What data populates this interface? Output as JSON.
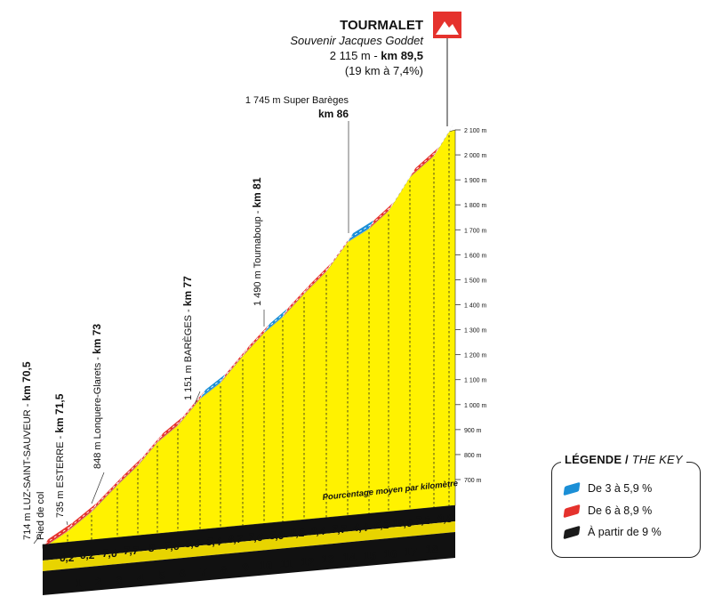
{
  "summit": {
    "name": "TOURMALET",
    "subtitle": "Souvenir Jacques Goddet",
    "altitude": "2 115 m - ",
    "km": "km 89,5",
    "climb": "(19 km à 7,4%)",
    "flag_icon": "mountain-flag-icon",
    "flag_color": "#e5322d"
  },
  "legend": {
    "title": "LÉGENDE /",
    "title_en": "THE KEY",
    "items": [
      {
        "label": "De 3 à 5,9 %",
        "color": "#1b8fd6"
      },
      {
        "label": "De 6 à 8,9 %",
        "color": "#e5322d"
      },
      {
        "label": "À partir de 9 %",
        "color": "#1a1a1a"
      }
    ]
  },
  "chart_data": {
    "type": "area",
    "title": "TOURMALET",
    "xlabel": "",
    "ylabel": "",
    "ylim": [
      700,
      2100
    ],
    "ytick_values": [
      700,
      800,
      900,
      1000,
      1100,
      1200,
      1300,
      1400,
      1500,
      1600,
      1700,
      1800,
      1900,
      2000,
      2100
    ],
    "ytick_labels": [
      "700 m",
      "800 m",
      "900 m",
      "1 000 m",
      "1 100 m",
      "1 200 m",
      "1 300 m",
      "1 400 m",
      "1 500 m",
      "1 600 m",
      "1 700 m",
      "1 800 m",
      "1 900 m",
      "2 000 m",
      "2 100 m"
    ],
    "km_labels": [
      "1",
      "2",
      "3",
      "4",
      "5",
      "6",
      "7",
      "8",
      "9",
      "10",
      "11",
      "12",
      "13",
      "14",
      "15",
      "16",
      "17",
      "18"
    ],
    "gradients": [
      "6,2",
      "6,2",
      "7,6",
      "7,7",
      "8",
      "7,6",
      "8,6",
      "5,4",
      "8,7",
      "7,6",
      "5,9",
      "8,2",
      "8,4",
      "7,7",
      "4,4",
      "6,2",
      "10,9",
      "7,2",
      "9,8"
    ],
    "gradient_values": [
      6.2,
      6.2,
      7.6,
      7.7,
      8,
      7.6,
      8.6,
      5.4,
      8.7,
      7.6,
      5.9,
      8.2,
      8.4,
      7.7,
      4.4,
      6.2,
      10.9,
      7.2,
      9.8
    ],
    "average_label": "Pourcentage moyen par kilomètre",
    "grid": false,
    "legend_position": "bottom-right",
    "waypoints": [
      {
        "name": "714 m LUZ-SAINT-SAUVEUR - ",
        "km": "km 70,5",
        "sub": "Pied de col"
      },
      {
        "name": "735 m ESTERRE - ",
        "km": "km 71,5"
      },
      {
        "name": "848 m Lonquere-Glarets - ",
        "km": "km 73"
      },
      {
        "name": "1 151 m BARÈGES - ",
        "km": "km 77"
      },
      {
        "name": "1 490 m Tournaboup - ",
        "km": "km 81"
      },
      {
        "name": "1 745 m Super Barèges",
        "km": "km 86"
      }
    ],
    "colors": {
      "fill": "#fff200",
      "base": "#111111",
      "base_face": "#e8d400"
    }
  }
}
